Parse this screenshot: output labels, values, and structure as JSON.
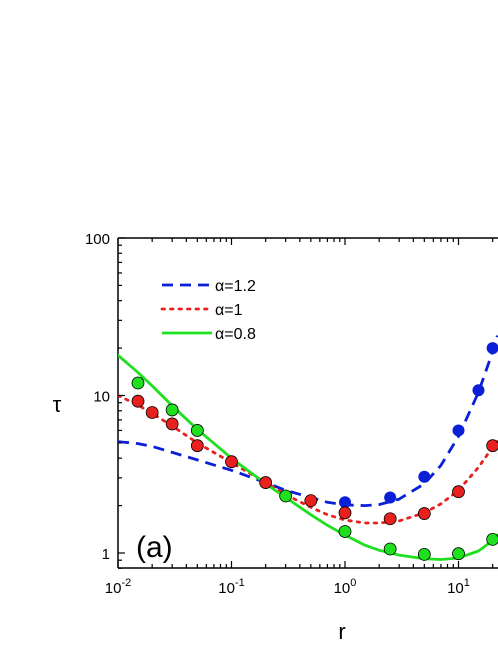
{
  "chart_data": {
    "type": "scatter",
    "title": "",
    "xlabel": "r",
    "ylabel": "τ",
    "xscale": "log",
    "yscale": "log",
    "xlim": [
      0.01,
      22
    ],
    "ylim": [
      0.8,
      100
    ],
    "x_ticks": [
      {
        "value": 0.01,
        "base": "10",
        "exp": "-2"
      },
      {
        "value": 0.1,
        "base": "10",
        "exp": "-1"
      },
      {
        "value": 1,
        "base": "10",
        "exp": "0"
      },
      {
        "value": 10,
        "base": "10",
        "exp": "1"
      }
    ],
    "y_ticks": [
      {
        "value": 1,
        "label": "1"
      },
      {
        "value": 10,
        "label": "10"
      },
      {
        "value": 100,
        "label": "100"
      }
    ],
    "annotation": "(a)",
    "legend_position": "top-left",
    "series": [
      {
        "name": "α=1.2",
        "color": "#0a1fd6",
        "line_style": "dashed",
        "curve": {
          "x": [
            0.01,
            0.015,
            0.02,
            0.03,
            0.05,
            0.1,
            0.2,
            0.3,
            0.5,
            0.7,
            1,
            1.5,
            2,
            3,
            5,
            7,
            10,
            15,
            20,
            22
          ],
          "y": [
            5.1,
            4.95,
            4.75,
            4.35,
            3.9,
            3.35,
            2.8,
            2.5,
            2.25,
            2.1,
            2.02,
            2.0,
            2.03,
            2.2,
            2.75,
            3.6,
            5.5,
            10.5,
            19,
            24
          ]
        },
        "points": {
          "x": [
            1,
            2.5,
            5,
            10,
            15,
            20
          ],
          "y": [
            2.1,
            2.25,
            3.05,
            6.0,
            10.8,
            20
          ]
        }
      },
      {
        "name": "α=1",
        "color": "#e8201e",
        "line_style": "dotted",
        "curve": {
          "x": [
            0.01,
            0.015,
            0.02,
            0.03,
            0.05,
            0.1,
            0.2,
            0.3,
            0.5,
            0.7,
            1,
            1.5,
            2,
            3,
            5,
            7,
            10,
            15,
            20,
            22
          ],
          "y": [
            10,
            8.7,
            7.7,
            6.4,
            5.0,
            3.75,
            2.8,
            2.35,
            1.95,
            1.75,
            1.62,
            1.55,
            1.55,
            1.6,
            1.8,
            2.05,
            2.5,
            3.5,
            4.7,
            5.1
          ]
        },
        "points": {
          "x": [
            0.015,
            0.02,
            0.03,
            0.05,
            0.1,
            0.2,
            0.5,
            1,
            2.5,
            5,
            10,
            20
          ],
          "y": [
            9.2,
            7.8,
            6.6,
            4.8,
            3.8,
            2.8,
            2.15,
            1.8,
            1.65,
            1.78,
            2.45,
            4.8
          ]
        }
      },
      {
        "name": "α=0.8",
        "color": "#1fe01f",
        "line_style": "solid",
        "curve": {
          "x": [
            0.01,
            0.015,
            0.02,
            0.03,
            0.05,
            0.1,
            0.2,
            0.3,
            0.5,
            0.7,
            1,
            1.5,
            2,
            3,
            5,
            7,
            10,
            15,
            20,
            22
          ],
          "y": [
            18,
            14,
            11.5,
            8.6,
            6.1,
            4.0,
            2.75,
            2.25,
            1.75,
            1.5,
            1.3,
            1.12,
            1.04,
            0.97,
            0.92,
            0.91,
            0.93,
            1.03,
            1.2,
            1.3
          ]
        },
        "points": {
          "x": [
            0.015,
            0.03,
            0.05,
            0.3,
            1,
            2.5,
            5,
            10,
            20
          ],
          "y": [
            12,
            8.1,
            6.0,
            2.3,
            1.37,
            1.06,
            0.98,
            0.99,
            1.22
          ]
        }
      }
    ]
  }
}
